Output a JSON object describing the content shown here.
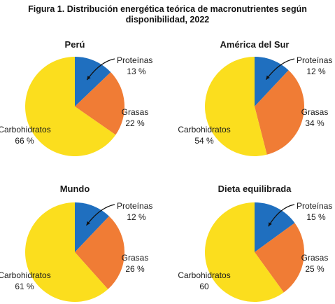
{
  "figure_title": [
    "Figura 1. Distribución energética teórica de macronutrientes según",
    "disponibilidad, 2022"
  ],
  "colors": {
    "proteinas": "#1f6fbf",
    "grasas": "#f07c35",
    "carbohidratos": "#fbde1e"
  },
  "chart_data": [
    {
      "type": "pie",
      "title": "Perú",
      "slices": [
        {
          "name": "Proteínas",
          "value": 13,
          "value_label": "13 %"
        },
        {
          "name": "Grasas",
          "value": 22,
          "value_label": "22 %"
        },
        {
          "name": "Carbohidratos",
          "value": 66,
          "value_label": "66 %"
        }
      ]
    },
    {
      "type": "pie",
      "title": "América del Sur",
      "slices": [
        {
          "name": "Proteínas",
          "value": 12,
          "value_label": "12 %"
        },
        {
          "name": "Grasas",
          "value": 34,
          "value_label": "34 %"
        },
        {
          "name": "Carbohidratos",
          "value": 54,
          "value_label": "54 %"
        }
      ]
    },
    {
      "type": "pie",
      "title": "Mundo",
      "slices": [
        {
          "name": "Proteínas",
          "value": 12,
          "value_label": "12 %"
        },
        {
          "name": "Grasas",
          "value": 26,
          "value_label": "26 %"
        },
        {
          "name": "Carbohidratos",
          "value": 61,
          "value_label": "61 %"
        }
      ]
    },
    {
      "type": "pie",
      "title": "Dieta equilibrada",
      "slices": [
        {
          "name": "Proteínas",
          "value": 15,
          "value_label": "15 %"
        },
        {
          "name": "Grasas",
          "value": 25,
          "value_label": "25 %"
        },
        {
          "name": "Carbohidratos",
          "value": 60,
          "value_label": "60"
        }
      ]
    }
  ]
}
